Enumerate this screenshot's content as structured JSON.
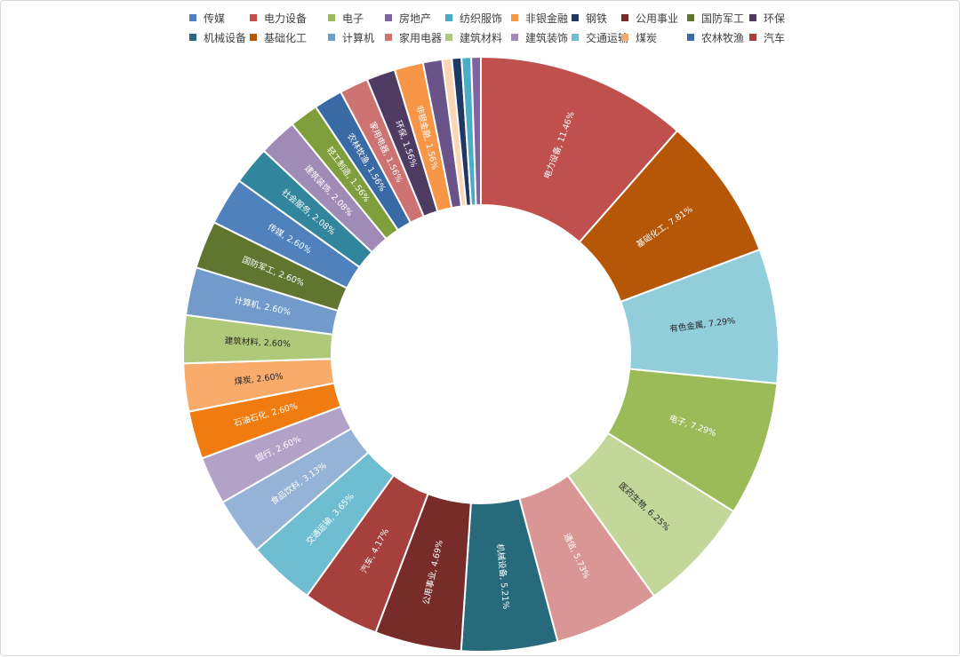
{
  "chart_data": {
    "type": "pie",
    "subtype": "doughnut",
    "legend_position": "top",
    "legend": [
      {
        "name": "传媒",
        "color": "#4f81bd"
      },
      {
        "name": "电力设备",
        "color": "#c0504d"
      },
      {
        "name": "电子",
        "color": "#9bbb59"
      },
      {
        "name": "房地产",
        "color": "#8064a2"
      },
      {
        "name": "纺织服饰",
        "color": "#4bacc6"
      },
      {
        "name": "非银金融",
        "color": "#f79646"
      },
      {
        "name": "钢铁",
        "color": "#1f3864"
      },
      {
        "name": "公用事业",
        "color": "#772c2a"
      },
      {
        "name": "国防军工",
        "color": "#5f7530"
      },
      {
        "name": "环保",
        "color": "#4d3b62"
      },
      {
        "name": "机械设备",
        "color": "#276a7c"
      },
      {
        "name": "基础化工",
        "color": "#b65708"
      },
      {
        "name": "计算机",
        "color": "#729aca"
      },
      {
        "name": "家用电器",
        "color": "#cd7371"
      },
      {
        "name": "建筑材料",
        "color": "#afc97a"
      },
      {
        "name": "建筑装饰",
        "color": "#a08ab6"
      },
      {
        "name": "交通运输",
        "color": "#6fbdd1"
      },
      {
        "name": "煤炭",
        "color": "#f9ab6b"
      },
      {
        "name": "农林牧渔",
        "color": "#3a6aa6"
      },
      {
        "name": "汽车",
        "color": "#a5403d"
      }
    ],
    "slices": [
      {
        "name": "电力设备",
        "value": 11.46,
        "label": "电力设备, 11.46%",
        "color": "#c0504d",
        "label_color": "#ffffff"
      },
      {
        "name": "基础化工",
        "value": 7.81,
        "label": "基础化工, 7.81%",
        "color": "#b65708",
        "label_color": "#ffffff"
      },
      {
        "name": "有色金属",
        "value": 7.29,
        "label": "有色金属, 7.29%",
        "color": "#92cddc",
        "label_color": "#262626"
      },
      {
        "name": "电子",
        "value": 7.29,
        "label": "电子, 7.29%",
        "color": "#9bbb59",
        "label_color": "#ffffff"
      },
      {
        "name": "医药生物",
        "value": 6.25,
        "label": "医药生物, 6.25%",
        "color": "#c4d79b",
        "label_color": "#262626"
      },
      {
        "name": "通信",
        "value": 5.73,
        "label": "通信, 5.73%",
        "color": "#da9694",
        "label_color": "#ffffff"
      },
      {
        "name": "机械设备",
        "value": 5.21,
        "label": "机械设备, 5.21%",
        "color": "#276a7c",
        "label_color": "#ffffff"
      },
      {
        "name": "公用事业",
        "value": 4.69,
        "label": "公用事业, 4.69%",
        "color": "#772c2a",
        "label_color": "#ffffff"
      },
      {
        "name": "汽车",
        "value": 4.17,
        "label": "汽车, 4.17%",
        "color": "#a5403d",
        "label_color": "#ffffff"
      },
      {
        "name": "交通运输",
        "value": 3.65,
        "label": "交通运输, 3.65%",
        "color": "#6fbdd1",
        "label_color": "#ffffff"
      },
      {
        "name": "食品饮料",
        "value": 3.13,
        "label": "食品饮料, 3.13%",
        "color": "#95b3d7",
        "label_color": "#ffffff"
      },
      {
        "name": "银行",
        "value": 2.6,
        "label": "银行, 2.60%",
        "color": "#b3a2c7",
        "label_color": "#ffffff"
      },
      {
        "name": "石油石化",
        "value": 2.6,
        "label": "石油石化, 2.60%",
        "color": "#f07c11",
        "label_color": "#ffffff"
      },
      {
        "name": "煤炭",
        "value": 2.6,
        "label": "煤炭, 2.60%",
        "color": "#f9ab6b",
        "label_color": "#262626"
      },
      {
        "name": "建筑材料",
        "value": 2.6,
        "label": "建筑材料, 2.60%",
        "color": "#afc97a",
        "label_color": "#262626"
      },
      {
        "name": "计算机",
        "value": 2.6,
        "label": "计算机, 2.60%",
        "color": "#729aca",
        "label_color": "#ffffff"
      },
      {
        "name": "国防军工",
        "value": 2.6,
        "label": "国防军工, 2.60%",
        "color": "#5f7530",
        "label_color": "#ffffff"
      },
      {
        "name": "传媒",
        "value": 2.6,
        "label": "传媒, 2.60%",
        "color": "#4f81bd",
        "label_color": "#ffffff"
      },
      {
        "name": "社会服务",
        "value": 2.08,
        "label": "社会服务, 2.08%",
        "color": "#31859c",
        "label_color": "#ffffff"
      },
      {
        "name": "建筑装饰",
        "value": 2.08,
        "label": "建筑装饰, 2.08%",
        "color": "#a08ab6",
        "label_color": "#ffffff"
      },
      {
        "name": "轻工制造",
        "value": 1.56,
        "label": "轻工制造, 1.56%",
        "color": "#7f9f3c",
        "label_color": "#ffffff"
      },
      {
        "name": "农林牧渔",
        "value": 1.56,
        "label": "农林牧渔, 1.56%",
        "color": "#3a6aa6",
        "label_color": "#ffffff"
      },
      {
        "name": "家用电器",
        "value": 1.56,
        "label": "家用电器, 1.56%",
        "color": "#cd7371",
        "label_color": "#ffffff"
      },
      {
        "name": "环保",
        "value": 1.56,
        "label": "环保, 1.56%",
        "color": "#4d3b62",
        "label_color": "#ffffff"
      },
      {
        "name": "非银金融",
        "value": 1.56,
        "label": "非银金融, 1.56%",
        "color": "#f79646",
        "label_color": "#ffffff"
      },
      {
        "name": "",
        "value": 1.04,
        "label": "",
        "color": "#6a5388",
        "label_color": "#ffffff"
      },
      {
        "name": "",
        "value": 0.52,
        "label": "",
        "color": "#fcd5b4",
        "label_color": "#ffffff"
      },
      {
        "name": "",
        "value": 0.52,
        "label": "",
        "color": "#1f3864",
        "label_color": "#ffffff"
      },
      {
        "name": "",
        "value": 0.52,
        "label": "",
        "color": "#4bacc6",
        "label_color": "#ffffff"
      },
      {
        "name": "",
        "value": 0.52,
        "label": "",
        "color": "#8064a2",
        "label_color": "#ffffff"
      }
    ]
  }
}
